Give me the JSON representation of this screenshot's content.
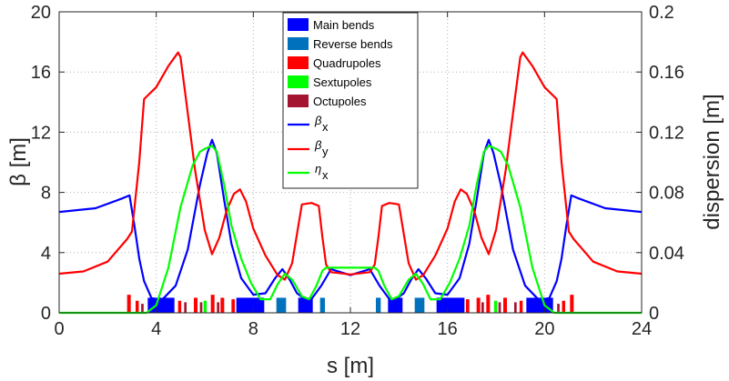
{
  "chart_data": {
    "type": "line",
    "title": "",
    "xlabel": "s [m]",
    "ylabel_left": "β [m]",
    "ylabel_right": "dispersion [m]",
    "xlim": [
      0,
      24
    ],
    "ylim_left": [
      0,
      20
    ],
    "ylim_right": [
      0,
      0.2
    ],
    "xticks": [
      "0",
      "4",
      "8",
      "12",
      "16",
      "20",
      "24"
    ],
    "yticks_left": [
      "0",
      "4",
      "8",
      "12",
      "16",
      "20"
    ],
    "yticks_right": [
      "0",
      "0.04",
      "0.08",
      "0.12",
      "0.16",
      "0.2"
    ],
    "grid": "dotted",
    "legend_position": "top-center",
    "legend": [
      {
        "label": "Main bends",
        "kind": "patch",
        "color": "#0000ff"
      },
      {
        "label": "Reverse bends",
        "kind": "patch",
        "color": "#0072bd"
      },
      {
        "label": "Quadrupoles",
        "kind": "patch",
        "color": "#ff0000"
      },
      {
        "label": "Sextupoles",
        "kind": "patch",
        "color": "#00ff00"
      },
      {
        "label": "Octupoles",
        "kind": "patch",
        "color": "#a2142f"
      },
      {
        "label": "β",
        "sub": "x",
        "kind": "line",
        "color": "#0000ff"
      },
      {
        "label": "β",
        "sub": "y",
        "kind": "line",
        "color": "#ff0000"
      },
      {
        "label": "η",
        "sub": "x",
        "kind": "line",
        "color": "#00ff00"
      }
    ],
    "series": [
      {
        "name": "βx",
        "axis": "left",
        "color": "#0000ff",
        "x": [
          0,
          1.5,
          2.6,
          2.9,
          3.1,
          3.3,
          3.5,
          3.8,
          4.2,
          4.8,
          5.3,
          5.8,
          6.1,
          6.3,
          6.5,
          6.8,
          7.1,
          7.5,
          8.0,
          8.5,
          8.9,
          9.2,
          9.5,
          9.8,
          10.3,
          10.8,
          11.2,
          12.0,
          12.8,
          13.2,
          13.7,
          14.2,
          14.5,
          14.8,
          15.1,
          15.5,
          16.0,
          16.5,
          16.9,
          17.2,
          17.5,
          17.7,
          17.9,
          18.2,
          18.7,
          19.2,
          19.8,
          20.2,
          20.5,
          20.7,
          20.9,
          21.1,
          21.4,
          22.5,
          24
        ],
        "y": [
          6.7,
          6.95,
          7.6,
          7.8,
          5.8,
          3.6,
          2.1,
          1.0,
          0.8,
          1.8,
          4.2,
          8.5,
          10.6,
          11.5,
          10.6,
          7.5,
          4.6,
          2.3,
          1.2,
          1.3,
          2.3,
          2.9,
          2.2,
          1.3,
          0.7,
          1.8,
          2.9,
          2.5,
          2.9,
          1.8,
          0.7,
          1.3,
          2.2,
          2.9,
          2.3,
          1.3,
          1.2,
          2.3,
          4.6,
          7.5,
          10.6,
          11.5,
          10.6,
          8.5,
          4.2,
          1.8,
          0.8,
          1.0,
          2.1,
          3.6,
          5.8,
          7.8,
          7.6,
          6.95,
          6.7
        ]
      },
      {
        "name": "βy",
        "axis": "left",
        "color": "#ff0000",
        "x": [
          0,
          1.0,
          2.0,
          2.8,
          3.0,
          3.3,
          3.5,
          4.0,
          4.5,
          4.9,
          5.0,
          5.2,
          5.6,
          6.0,
          6.3,
          6.6,
          6.9,
          7.2,
          7.45,
          7.7,
          8.0,
          8.5,
          9.0,
          9.3,
          9.6,
          10.0,
          10.4,
          10.7,
          10.85,
          11.0,
          11.2,
          12.0,
          12.8,
          13.0,
          13.15,
          13.3,
          13.6,
          14.0,
          14.4,
          14.7,
          15.0,
          15.5,
          16.0,
          16.3,
          16.55,
          16.8,
          17.1,
          17.4,
          17.7,
          18.0,
          18.4,
          18.8,
          19.0,
          19.1,
          19.5,
          20.0,
          20.5,
          20.7,
          21.0,
          21.2,
          22.0,
          23.0,
          24
        ],
        "y": [
          2.6,
          2.75,
          3.4,
          4.9,
          5.4,
          10.0,
          14.2,
          15.0,
          16.4,
          17.3,
          17.0,
          14.5,
          9.5,
          5.5,
          3.9,
          5.0,
          6.8,
          7.9,
          8.2,
          7.4,
          5.6,
          3.8,
          2.5,
          2.2,
          3.3,
          7.2,
          7.3,
          7.1,
          5.0,
          3.2,
          2.7,
          2.55,
          2.7,
          3.2,
          5.0,
          7.1,
          7.3,
          7.2,
          3.3,
          2.2,
          2.5,
          3.8,
          5.6,
          7.4,
          8.2,
          7.9,
          6.8,
          5.0,
          3.9,
          5.5,
          9.5,
          14.5,
          17.0,
          17.3,
          16.4,
          15.0,
          14.2,
          10.0,
          5.4,
          4.9,
          3.4,
          2.75,
          2.6
        ]
      },
      {
        "name": "ηx",
        "axis": "right",
        "color": "#00ff00",
        "x": [
          0,
          3.0,
          3.6,
          4.0,
          4.5,
          5.0,
          5.5,
          5.8,
          6.0,
          6.3,
          6.5,
          6.8,
          7.1,
          7.5,
          7.9,
          8.3,
          8.7,
          9.0,
          9.3,
          9.6,
          10.0,
          10.3,
          10.6,
          10.85,
          11.0,
          12.0,
          13.0,
          13.15,
          13.4,
          13.7,
          14.0,
          14.4,
          14.7,
          15.0,
          15.3,
          15.7,
          16.1,
          16.5,
          16.9,
          17.2,
          17.5,
          17.7,
          18.0,
          18.2,
          18.5,
          19.0,
          19.5,
          20.0,
          20.4,
          21.0,
          24
        ],
        "y": [
          0.0,
          0.0,
          0.0,
          0.005,
          0.03,
          0.07,
          0.098,
          0.107,
          0.109,
          0.111,
          0.107,
          0.085,
          0.058,
          0.036,
          0.02,
          0.009,
          0.009,
          0.019,
          0.026,
          0.022,
          0.011,
          0.009,
          0.018,
          0.028,
          0.03,
          0.03,
          0.03,
          0.028,
          0.018,
          0.009,
          0.011,
          0.022,
          0.026,
          0.019,
          0.009,
          0.009,
          0.02,
          0.036,
          0.058,
          0.085,
          0.107,
          0.111,
          0.109,
          0.107,
          0.098,
          0.07,
          0.03,
          0.005,
          0.0,
          0.0,
          0.0
        ]
      }
    ],
    "magnets": [
      {
        "kind": "main-bend",
        "color": "#0000ff",
        "s0": 3.65,
        "s1": 4.75,
        "h": 1.0
      },
      {
        "kind": "main-bend",
        "color": "#0000ff",
        "s0": 7.3,
        "s1": 8.45,
        "h": 1.0
      },
      {
        "kind": "main-bend",
        "color": "#0000ff",
        "s0": 9.85,
        "s1": 10.45,
        "h": 1.0
      },
      {
        "kind": "main-bend",
        "color": "#0000ff",
        "s0": 13.55,
        "s1": 14.15,
        "h": 1.0
      },
      {
        "kind": "main-bend",
        "color": "#0000ff",
        "s0": 15.55,
        "s1": 16.7,
        "h": 1.0
      },
      {
        "kind": "main-bend",
        "color": "#0000ff",
        "s0": 19.25,
        "s1": 20.35,
        "h": 1.0
      },
      {
        "kind": "reverse-bend",
        "color": "#0072bd",
        "s0": 8.95,
        "s1": 9.35,
        "h": 1.0
      },
      {
        "kind": "reverse-bend",
        "color": "#0072bd",
        "s0": 10.75,
        "s1": 10.95,
        "h": 1.0
      },
      {
        "kind": "reverse-bend",
        "color": "#0072bd",
        "s0": 13.05,
        "s1": 13.25,
        "h": 1.0
      },
      {
        "kind": "reverse-bend",
        "color": "#0072bd",
        "s0": 14.65,
        "s1": 15.05,
        "h": 1.0
      },
      {
        "kind": "quadrupole",
        "color": "#ff0000",
        "s0": 2.8,
        "s1": 2.95,
        "h": 1.2
      },
      {
        "kind": "quadrupole",
        "color": "#ff0000",
        "s0": 3.15,
        "s1": 3.28,
        "h": 0.8
      },
      {
        "kind": "quadrupole",
        "color": "#ff0000",
        "s0": 4.9,
        "s1": 5.03,
        "h": 0.8
      },
      {
        "kind": "quadrupole",
        "color": "#ff0000",
        "s0": 5.55,
        "s1": 5.7,
        "h": 1.0
      },
      {
        "kind": "quadrupole",
        "color": "#ff0000",
        "s0": 6.25,
        "s1": 6.4,
        "h": 1.2
      },
      {
        "kind": "quadrupole",
        "color": "#ff0000",
        "s0": 6.65,
        "s1": 6.8,
        "h": 1.0
      },
      {
        "kind": "quadrupole",
        "color": "#ff0000",
        "s0": 7.1,
        "s1": 7.24,
        "h": 0.9
      },
      {
        "kind": "quadrupole",
        "color": "#ff0000",
        "s0": 16.76,
        "s1": 16.9,
        "h": 0.9
      },
      {
        "kind": "quadrupole",
        "color": "#ff0000",
        "s0": 17.2,
        "s1": 17.35,
        "h": 1.0
      },
      {
        "kind": "quadrupole",
        "color": "#ff0000",
        "s0": 17.6,
        "s1": 17.75,
        "h": 1.2
      },
      {
        "kind": "quadrupole",
        "color": "#ff0000",
        "s0": 18.3,
        "s1": 18.45,
        "h": 1.0
      },
      {
        "kind": "quadrupole",
        "color": "#ff0000",
        "s0": 18.97,
        "s1": 19.1,
        "h": 0.8
      },
      {
        "kind": "quadrupole",
        "color": "#ff0000",
        "s0": 20.72,
        "s1": 20.85,
        "h": 0.8
      },
      {
        "kind": "quadrupole",
        "color": "#ff0000",
        "s0": 21.05,
        "s1": 21.2,
        "h": 1.2
      },
      {
        "kind": "sextupole",
        "color": "#00ff00",
        "s0": 5.95,
        "s1": 6.08,
        "h": 0.8
      },
      {
        "kind": "sextupole",
        "color": "#00ff00",
        "s0": 17.92,
        "s1": 18.05,
        "h": 0.8
      },
      {
        "kind": "octupole",
        "color": "#a2142f",
        "s0": 3.38,
        "s1": 3.48,
        "h": 0.6
      },
      {
        "kind": "octupole",
        "color": "#a2142f",
        "s0": 5.15,
        "s1": 5.25,
        "h": 0.7
      },
      {
        "kind": "octupole",
        "color": "#a2142f",
        "s0": 5.8,
        "s1": 5.9,
        "h": 0.7
      },
      {
        "kind": "octupole",
        "color": "#a2142f",
        "s0": 6.5,
        "s1": 6.6,
        "h": 0.7
      },
      {
        "kind": "octupole",
        "color": "#a2142f",
        "s0": 17.4,
        "s1": 17.5,
        "h": 0.7
      },
      {
        "kind": "octupole",
        "color": "#a2142f",
        "s0": 18.1,
        "s1": 18.2,
        "h": 0.7
      },
      {
        "kind": "octupole",
        "color": "#a2142f",
        "s0": 18.75,
        "s1": 18.85,
        "h": 0.7
      },
      {
        "kind": "octupole",
        "color": "#a2142f",
        "s0": 20.52,
        "s1": 20.62,
        "h": 0.6
      }
    ]
  }
}
